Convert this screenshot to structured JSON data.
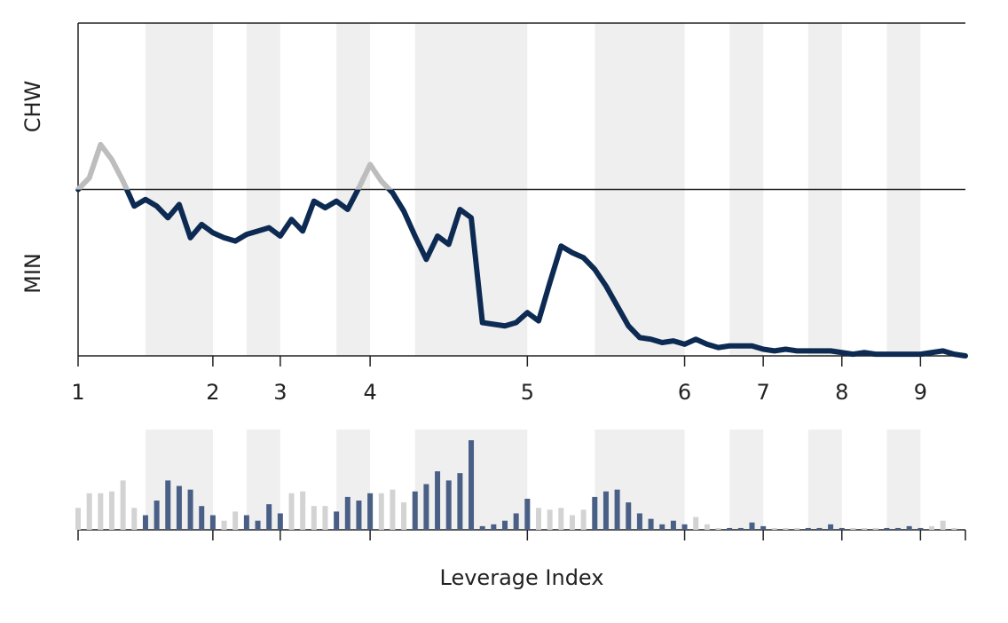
{
  "chart_data": {
    "type": "line",
    "x_label": "Leverage Index",
    "upper_label": "CHW",
    "lower_label": "MIN",
    "x": [
      0,
      1,
      2,
      3,
      4,
      5,
      6,
      7,
      8,
      9,
      10,
      11,
      12,
      13,
      14,
      15,
      16,
      17,
      18,
      19,
      20,
      21,
      22,
      23,
      24,
      25,
      26,
      27,
      28,
      29,
      30,
      31,
      32,
      33,
      34,
      35,
      36,
      37,
      38,
      39,
      40,
      41,
      42,
      43,
      44,
      45,
      46,
      47,
      48,
      49,
      50,
      51,
      52,
      53,
      54,
      55,
      56,
      57,
      58,
      59,
      60,
      61,
      62,
      63,
      64,
      65,
      66,
      67,
      68,
      69,
      70,
      71,
      72,
      73,
      74,
      75,
      76,
      77,
      78,
      79
    ],
    "values": [
      1.0,
      1.07,
      1.27,
      1.18,
      1.05,
      0.9,
      0.94,
      0.9,
      0.83,
      0.91,
      0.71,
      0.79,
      0.74,
      0.71,
      0.69,
      0.73,
      0.75,
      0.77,
      0.72,
      0.82,
      0.75,
      0.93,
      0.89,
      0.93,
      0.88,
      1.01,
      1.15,
      1.05,
      0.98,
      0.87,
      0.72,
      0.58,
      0.72,
      0.67,
      0.88,
      0.83,
      0.2,
      0.19,
      0.18,
      0.2,
      0.26,
      0.21,
      0.44,
      0.66,
      0.62,
      0.59,
      0.52,
      0.42,
      0.3,
      0.18,
      0.11,
      0.1,
      0.08,
      0.09,
      0.07,
      0.1,
      0.07,
      0.05,
      0.06,
      0.06,
      0.06,
      0.04,
      0.03,
      0.04,
      0.03,
      0.03,
      0.03,
      0.03,
      0.02,
      0.01,
      0.02,
      0.01,
      0.01,
      0.01,
      0.01,
      0.01,
      0.02,
      0.03,
      0.01,
      0.0
    ],
    "color": "#0d2a52",
    "above_color": "#bdbdbd",
    "threshold": 1,
    "xlim": [
      0,
      79
    ],
    "ylim": [
      0,
      2
    ],
    "xticks": [
      {
        "value": 0,
        "label": "1"
      },
      {
        "value": 12,
        "label": "2"
      },
      {
        "value": 18,
        "label": "3"
      },
      {
        "value": 26,
        "label": "4"
      },
      {
        "value": 40,
        "label": "5"
      },
      {
        "value": 54,
        "label": "6"
      },
      {
        "value": 61,
        "label": "7"
      },
      {
        "value": 68,
        "label": "8"
      },
      {
        "value": 75,
        "label": "9"
      }
    ],
    "bands": [
      [
        6,
        12
      ],
      [
        15,
        18
      ],
      [
        23,
        26
      ],
      [
        30,
        40
      ],
      [
        46,
        54
      ],
      [
        58,
        61
      ],
      [
        65,
        68
      ],
      [
        72,
        75
      ]
    ],
    "band_color": "#efefef",
    "bars": {
      "values": [
        12,
        20,
        20,
        21,
        27,
        12,
        8,
        16,
        27,
        24,
        22,
        13,
        8,
        5,
        10,
        8,
        5,
        14,
        9,
        20,
        21,
        13,
        13,
        10,
        18,
        16,
        20,
        20,
        22,
        15,
        21,
        25,
        32,
        27,
        31,
        49,
        2,
        3,
        5,
        9,
        17,
        12,
        11,
        12,
        8,
        11,
        18,
        21,
        22,
        15,
        9,
        6,
        3,
        5,
        3,
        7,
        3,
        1,
        1,
        1,
        4,
        2,
        1,
        1,
        1,
        1,
        1,
        3,
        1,
        1,
        1,
        1,
        1,
        1,
        2,
        1,
        2,
        5,
        1,
        0
      ],
      "ylim": [
        0,
        50
      ],
      "color": "#d3d3d3",
      "highlight_color": "#4a5f86"
    }
  }
}
